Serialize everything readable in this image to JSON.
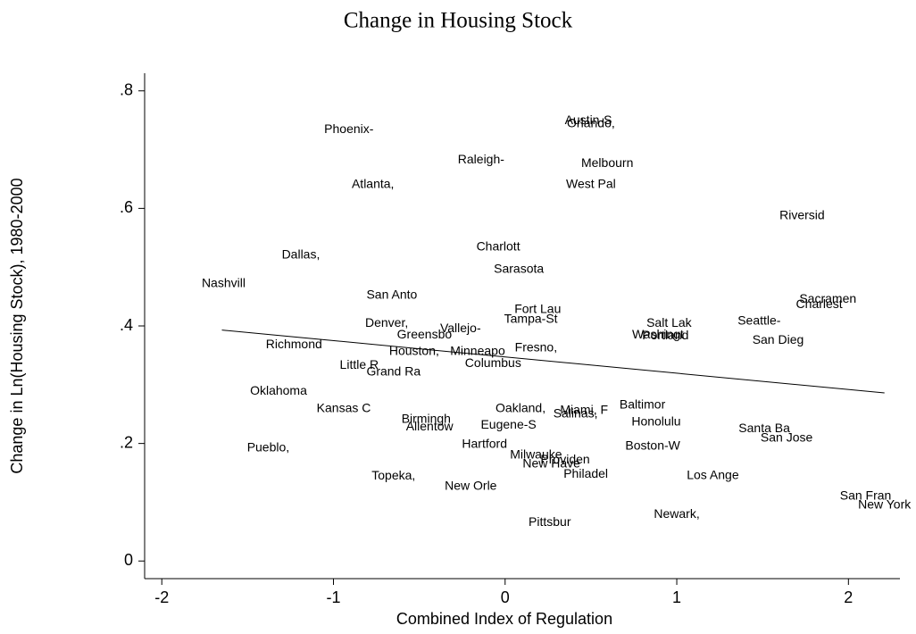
{
  "chart_data": {
    "type": "scatter",
    "title": "Change in Housing Stock",
    "x_label": "Combined Index of Regulation",
    "y_label": "Change in Ln(Housing Stock), 1980-2000",
    "xlim": [
      -2.1,
      2.3
    ],
    "ylim": [
      -0.03,
      0.83
    ],
    "xticks": [
      -2,
      -1,
      0,
      1,
      2
    ],
    "yticks": [
      {
        "value": 0,
        "label": "0"
      },
      {
        "value": 0.2,
        "label": ".2"
      },
      {
        "value": 0.4,
        "label": ".4"
      },
      {
        "value": 0.6,
        "label": ".6"
      },
      {
        "value": 0.8,
        "label": ".8"
      }
    ],
    "points": {
      "labels": [
        "Phoenix-",
        "Austin-S",
        "Orlando,",
        "Raleigh-",
        "Melbourn",
        "Atlanta,",
        "West Pal",
        "Riversid",
        "Charlott",
        "Dallas,",
        "Sarasota",
        "Nashvill",
        "San Anto",
        "Fort Lau",
        "Sacramen",
        "Charlest",
        "Tampa-St",
        "Denver,",
        "Vallejo-",
        "Salt Lak",
        "Seattle-",
        "Greensbo",
        "Washingt",
        "Portland",
        "San Dieg",
        "Richmond",
        "Houston,",
        "Minneapo",
        "Fresno,",
        "Columbus",
        "Little R",
        "Grand Ra",
        "Oklahoma",
        "Kansas C",
        "Baltimor",
        "Oakland,",
        "Miami, F",
        "Salinas,",
        "Honolulu",
        "Birmingh",
        "Allentow",
        "Eugene-S",
        "Santa Ba",
        "San Jose",
        "Hartford",
        "Boston-W",
        "Pueblo,",
        "Milwauke",
        "Providen",
        "New Have",
        "Philadel",
        "Topeka,",
        "Los Ange",
        "New Orle",
        "San Fran",
        "New York",
        "Newark,",
        "Pittsbur"
      ],
      "x": [
        -0.91,
        0.485,
        0.5,
        -0.14,
        0.595,
        -0.77,
        0.5,
        1.73,
        -0.04,
        -1.19,
        0.08,
        -1.64,
        -0.66,
        0.19,
        1.88,
        1.83,
        0.15,
        -0.69,
        -0.26,
        0.955,
        1.48,
        -0.47,
        0.89,
        0.934,
        1.59,
        -1.23,
        -0.53,
        -0.16,
        0.18,
        -0.07,
        -0.85,
        -0.65,
        -1.32,
        -0.94,
        0.8,
        0.09,
        0.46,
        0.41,
        0.88,
        -0.46,
        -0.44,
        0.02,
        1.51,
        1.64,
        -0.12,
        0.86,
        -1.38,
        0.18,
        0.35,
        0.27,
        0.47,
        -0.65,
        1.21,
        -0.2,
        2.1,
        2.21,
        1.0,
        0.26
      ],
      "y": [
        0.734,
        0.749,
        0.744,
        0.682,
        0.676,
        0.64,
        0.64,
        0.587,
        0.534,
        0.52,
        0.496,
        0.472,
        0.452,
        0.428,
        0.445,
        0.436,
        0.411,
        0.404,
        0.395,
        0.404,
        0.408,
        0.384,
        0.384,
        0.383,
        0.375,
        0.368,
        0.356,
        0.356,
        0.362,
        0.336,
        0.333,
        0.321,
        0.289,
        0.259,
        0.265,
        0.259,
        0.256,
        0.25,
        0.236,
        0.241,
        0.228,
        0.231,
        0.225,
        0.209,
        0.198,
        0.195,
        0.192,
        0.18,
        0.172,
        0.165,
        0.147,
        0.144,
        0.145,
        0.127,
        0.11,
        0.095,
        0.079,
        0.065
      ]
    },
    "fit_line": {
      "x": [
        -1.65,
        2.21
      ],
      "y": [
        0.393,
        0.286
      ],
      "color": "#000000"
    }
  }
}
